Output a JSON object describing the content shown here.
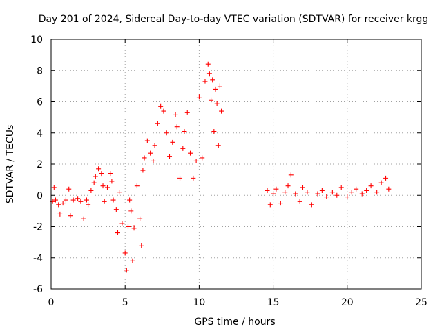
{
  "chart_data": {
    "type": "scatter",
    "title": "Day 201 of 2024, Sidereal Day-to-day VTEC variation (SDTVAR) for receiver krgg",
    "xlabel": "GPS time / hours",
    "ylabel": "SDTVAR / TECUs",
    "xlim": [
      0,
      25
    ],
    "ylim": [
      -6,
      10
    ],
    "xticks": [
      0,
      5,
      10,
      15,
      20,
      25
    ],
    "yticks": [
      -6,
      -4,
      -2,
      0,
      2,
      4,
      6,
      8,
      10
    ],
    "xtick_labels": [
      "0",
      "5",
      "10",
      "15",
      "20",
      "25"
    ],
    "ytick_labels": [
      "-6",
      "-4",
      "-2",
      "0",
      "2",
      "4",
      "6",
      "8",
      "10"
    ],
    "grid": true,
    "marker": "+",
    "color": "#ff0000",
    "series": [
      {
        "name": "SDTVAR",
        "x": [
          0.1,
          0.2,
          0.3,
          0.5,
          0.6,
          0.8,
          1.0,
          1.2,
          1.3,
          1.5,
          1.8,
          2.0,
          2.2,
          2.4,
          2.5,
          2.7,
          2.9,
          3.0,
          3.2,
          3.4,
          3.5,
          3.6,
          3.8,
          4.0,
          4.1,
          4.2,
          4.4,
          4.5,
          4.6,
          4.8,
          5.0,
          5.1,
          5.2,
          5.3,
          5.4,
          5.5,
          5.6,
          5.8,
          6.0,
          6.1,
          6.2,
          6.3,
          6.5,
          6.7,
          6.9,
          7.0,
          7.2,
          7.4,
          7.6,
          7.8,
          8.0,
          8.2,
          8.4,
          8.5,
          8.7,
          8.9,
          9.0,
          9.2,
          9.4,
          9.6,
          9.8,
          10.0,
          10.2,
          10.4,
          10.6,
          10.7,
          10.8,
          10.9,
          11.0,
          11.1,
          11.2,
          11.3,
          11.4,
          11.5,
          14.6,
          14.8,
          15.0,
          15.2,
          15.5,
          15.8,
          16.0,
          16.2,
          16.5,
          16.8,
          17.0,
          17.3,
          17.6,
          18.0,
          18.3,
          18.6,
          19.0,
          19.3,
          19.6,
          20.0,
          20.3,
          20.6,
          21.0,
          21.3,
          21.6,
          22.0,
          22.3,
          22.6,
          22.8
        ],
        "y": [
          -0.4,
          0.5,
          -0.3,
          -0.6,
          -1.2,
          -0.5,
          -0.3,
          0.4,
          -1.3,
          -0.3,
          -0.2,
          -0.4,
          -1.5,
          -0.3,
          -0.6,
          0.3,
          0.8,
          1.2,
          1.7,
          1.4,
          0.6,
          -0.4,
          0.5,
          1.4,
          0.9,
          -0.3,
          -0.9,
          -2.4,
          0.2,
          -1.8,
          -3.7,
          -4.8,
          -2.0,
          -0.3,
          -1.0,
          -4.2,
          -2.1,
          0.6,
          -1.5,
          -3.2,
          1.6,
          2.4,
          3.5,
          2.7,
          2.2,
          3.2,
          4.6,
          5.7,
          5.4,
          4.0,
          2.5,
          3.4,
          5.2,
          4.4,
          1.1,
          3.0,
          4.1,
          5.3,
          2.7,
          1.1,
          2.2,
          6.3,
          2.4,
          7.3,
          8.4,
          7.8,
          6.1,
          7.4,
          4.1,
          6.8,
          5.9,
          3.2,
          7.0,
          5.4,
          0.3,
          -0.6,
          0.1,
          0.4,
          -0.5,
          0.2,
          0.6,
          1.3,
          0.1,
          -0.4,
          0.5,
          0.2,
          -0.6,
          0.1,
          0.3,
          -0.1,
          0.2,
          0.0,
          0.5,
          -0.1,
          0.2,
          0.4,
          0.1,
          0.3,
          0.6,
          0.2,
          0.8,
          1.1,
          0.4
        ]
      }
    ]
  }
}
